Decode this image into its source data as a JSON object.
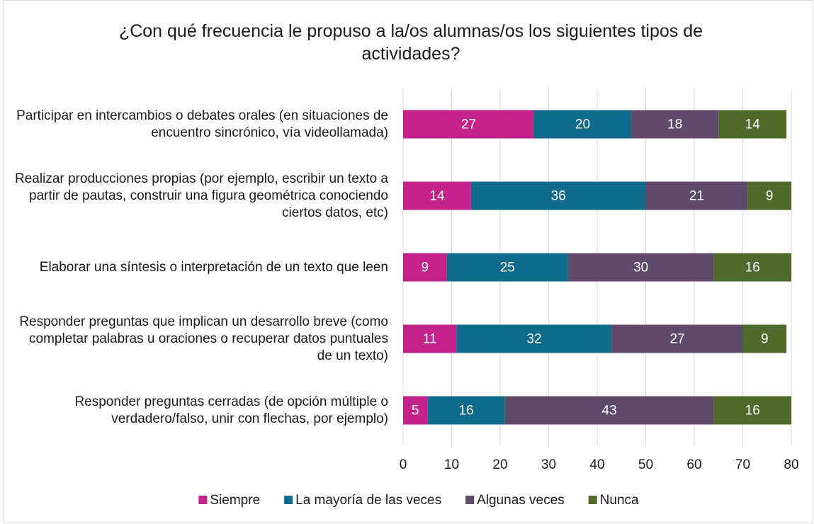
{
  "chart_data": {
    "type": "stacked-barh",
    "title": "¿Con qué frecuencia le propuso a la/os alumnas/os los siguientes tipos de actividades?",
    "categories": [
      "Participar en intercambios o debates orales (en situaciones de encuentro sincrónico, vía videollamada)",
      "Realizar producciones propias (por ejemplo, escribir un texto a partir de pautas, construir una figura geométrica conociendo ciertos datos, etc)",
      "Elaborar una síntesis o interpretación de un texto que leen",
      "Responder preguntas que implican un desarrollo breve (como completar palabras u oraciones o recuperar datos puntuales de un texto)",
      "Responder preguntas cerradas (de opción múltiple o verdadero/falso, unir con flechas, por ejemplo)"
    ],
    "series": [
      {
        "name": "Siempre",
        "color": "#c2228a",
        "values": [
          27,
          14,
          9,
          11,
          5
        ]
      },
      {
        "name": "La mayoría de las veces",
        "color": "#0f6a8b",
        "values": [
          20,
          36,
          25,
          32,
          16
        ]
      },
      {
        "name": "Algunas veces",
        "color": "#5f4a6b",
        "values": [
          18,
          21,
          30,
          27,
          43
        ]
      },
      {
        "name": "Nunca",
        "color": "#4f6b2b",
        "values": [
          14,
          9,
          16,
          9,
          16
        ]
      }
    ],
    "xlim": [
      0,
      80
    ],
    "xticks": [
      0,
      10,
      20,
      30,
      40,
      50,
      60,
      70,
      80
    ],
    "grid": true,
    "legend": "bottom"
  }
}
